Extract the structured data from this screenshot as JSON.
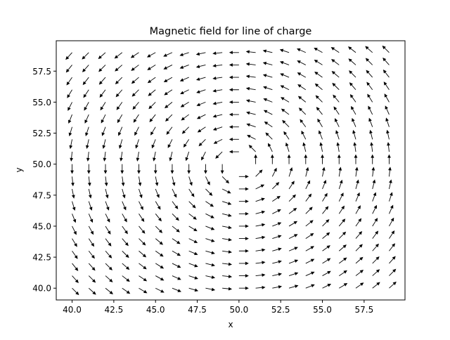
{
  "chart_data": {
    "type": "quiver",
    "title": "Magnetic field for line of charge",
    "xlabel": "x",
    "ylabel": "y",
    "xlim": [
      39.05,
      59.95
    ],
    "ylim": [
      39.05,
      59.95
    ],
    "xticks": [
      40.0,
      42.5,
      45.0,
      47.5,
      50.0,
      52.5,
      55.0,
      57.5
    ],
    "xtick_labels": [
      "40.0",
      "42.5",
      "45.0",
      "47.5",
      "50.0",
      "52.5",
      "55.0",
      "57.5"
    ],
    "yticks": [
      40.0,
      42.5,
      45.0,
      47.5,
      50.0,
      52.5,
      55.0,
      57.5
    ],
    "ytick_labels": [
      "40.0",
      "42.5",
      "45.0",
      "47.5",
      "50.0",
      "52.5",
      "55.0",
      "57.5"
    ],
    "grid": {
      "x": [
        40,
        41,
        42,
        43,
        44,
        45,
        46,
        47,
        48,
        49,
        50,
        51,
        52,
        53,
        54,
        55,
        56,
        57,
        58,
        59
      ],
      "y": [
        40,
        41,
        42,
        43,
        44,
        45,
        46,
        47,
        48,
        49,
        50,
        51,
        52,
        53,
        54,
        55,
        56,
        57,
        58,
        59
      ]
    },
    "field": {
      "description": "Unit vectors circulating around a line current at (50, 50)",
      "center": [
        50,
        50
      ],
      "u": "-(y - 50)/r",
      "v": "(x - 50)/r",
      "normalized": true
    },
    "arrow_color": "#000000",
    "grid_lines": false,
    "legend": "none"
  }
}
